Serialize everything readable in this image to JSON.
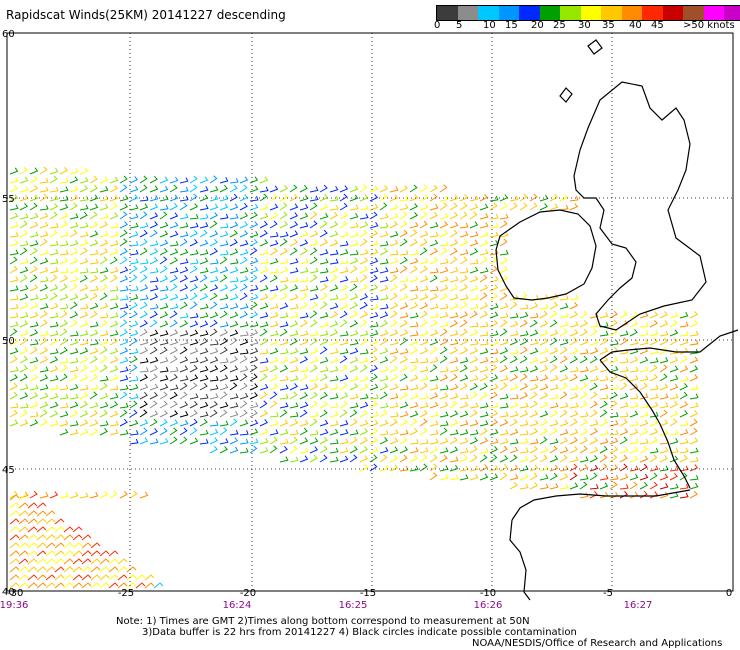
{
  "title": "Rapidscat Winds(25KM) 20141227 descending",
  "scale": {
    "colors": [
      "#3c3c3c",
      "#8c8c8c",
      "#00c8ff",
      "#0096ff",
      "#0028ff",
      "#00a000",
      "#96e600",
      "#ffff00",
      "#ffc800",
      "#ff8c00",
      "#ff2800",
      "#c80000",
      "#a05028",
      "#ff00ff",
      "#c800c8",
      "#6400a0"
    ],
    "labels": [
      "0",
      "5",
      "10",
      "15",
      "20",
      "25",
      "30",
      "35",
      "40",
      "45",
      ">50 knots"
    ]
  },
  "map": {
    "lon_ticks": [
      "-30",
      "-25",
      "-20",
      "-15",
      "-10",
      "-5",
      "0"
    ],
    "lat_ticks": [
      "40",
      "45",
      "50",
      "55",
      "60"
    ],
    "times": [
      "19:36",
      "16:24",
      "16:25",
      "16:26",
      "16:27"
    ]
  },
  "notes": [
    "Note: 1) Times are GMT 2)Times along bottom correspond to measurement at 50N",
    "3)Data buffer is 22 hrs from 20141227 4) Black circles indicate possible contamination"
  ],
  "credit": "NOAA/NESDIS/Office of Research and Applications"
}
